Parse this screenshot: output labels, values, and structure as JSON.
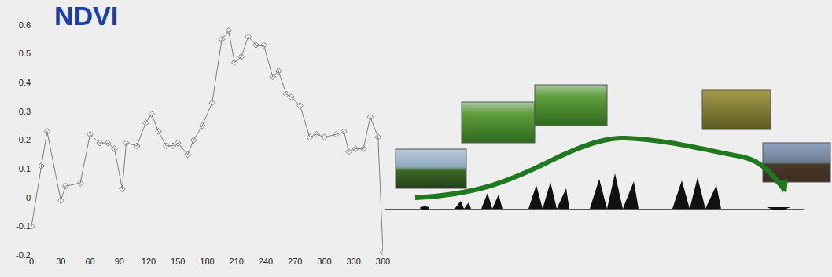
{
  "chart_data": {
    "type": "line",
    "title": "NDVI",
    "x": [
      0,
      10,
      16,
      30,
      35,
      50,
      60,
      70,
      78,
      85,
      93,
      97,
      108,
      117,
      123,
      130,
      138,
      145,
      150,
      160,
      166,
      175,
      185,
      195,
      202,
      208,
      215,
      222,
      230,
      238,
      247,
      253,
      261,
      266,
      275,
      285,
      292,
      300,
      312,
      320,
      325,
      332,
      340,
      347,
      355,
      360
    ],
    "values": [
      -0.1,
      0.11,
      0.23,
      -0.01,
      0.04,
      0.05,
      0.22,
      0.19,
      0.19,
      0.17,
      0.03,
      0.19,
      0.18,
      0.26,
      0.29,
      0.23,
      0.18,
      0.18,
      0.19,
      0.15,
      0.2,
      0.25,
      0.33,
      0.55,
      0.58,
      0.47,
      0.49,
      0.56,
      0.53,
      0.53,
      0.42,
      0.44,
      0.36,
      0.35,
      0.32,
      0.21,
      0.22,
      0.21,
      0.22,
      0.23,
      0.16,
      0.17,
      0.17,
      0.28,
      0.21,
      -0.19
    ],
    "color": "#808080",
    "marker": "diamond-open",
    "xlim": [
      0,
      360
    ],
    "xticks": [
      0,
      30,
      60,
      90,
      120,
      150,
      180,
      210,
      240,
      270,
      300,
      330,
      360
    ],
    "ylim": [
      -0.2,
      0.6
    ],
    "yticks": [
      -0.2,
      -0.1,
      0,
      0.1,
      0.2,
      0.3,
      0.4,
      0.5,
      0.6
    ],
    "grid": false
  }
}
